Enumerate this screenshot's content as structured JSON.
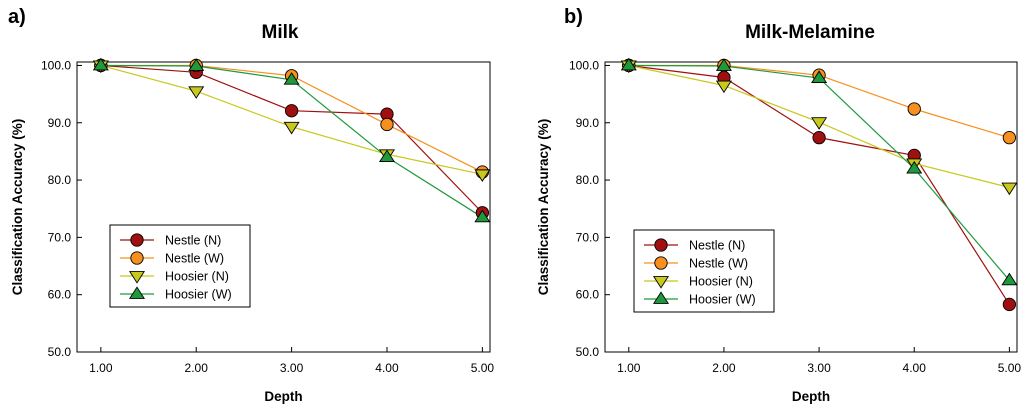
{
  "figure": {
    "panels": [
      "a)",
      "b)"
    ]
  },
  "chart_data": [
    {
      "type": "line",
      "panel_label": "a)",
      "title": "Milk",
      "xlabel": "Depth",
      "ylabel": "Classification Accuracy (%)",
      "x": [
        1,
        2,
        3,
        4,
        5
      ],
      "x_ticks": [
        "1.00",
        "2.00",
        "3.00",
        "4.00",
        "5.00"
      ],
      "y_ticks": [
        "50.0",
        "60.0",
        "70.0",
        "80.0",
        "90.0",
        "100.0"
      ],
      "xlim": [
        0.75,
        5.08
      ],
      "ylim": [
        50,
        100.6
      ],
      "legend_position": "bottom-left",
      "series": [
        {
          "name": "Nestle (N)",
          "values": [
            100,
            98.8,
            92.1,
            91.5,
            74.3
          ],
          "color": "#a01010",
          "marker": "circle"
        },
        {
          "name": "Nestle (W)",
          "values": [
            100,
            100,
            98.2,
            89.7,
            81.4
          ],
          "color": "#f7901e",
          "marker": "circle"
        },
        {
          "name": "Hoosier (N)",
          "values": [
            100,
            95.5,
            89.3,
            84.5,
            81.0
          ],
          "color": "#c8c81e",
          "marker": "triangle-down"
        },
        {
          "name": "Hoosier (W)",
          "values": [
            100,
            99.9,
            97.5,
            84.0,
            73.5
          ],
          "color": "#1e9a3c",
          "marker": "triangle-up"
        }
      ]
    },
    {
      "type": "line",
      "panel_label": "b)",
      "title": "Milk-Melamine",
      "xlabel": "Depth",
      "ylabel": "Classification Accuracy (%)",
      "x": [
        1,
        2,
        3,
        4,
        5
      ],
      "x_ticks": [
        "1.00",
        "2.00",
        "3.00",
        "4.00",
        "5.00"
      ],
      "y_ticks": [
        "50.0",
        "60.0",
        "70.0",
        "80.0",
        "90.0",
        "100.0"
      ],
      "xlim": [
        0.75,
        5.08
      ],
      "ylim": [
        50,
        100.6
      ],
      "legend_position": "bottom-left",
      "series": [
        {
          "name": "Nestle (N)",
          "values": [
            100,
            97.9,
            87.4,
            84.3,
            58.3
          ],
          "color": "#a01010",
          "marker": "circle"
        },
        {
          "name": "Nestle (W)",
          "values": [
            100,
            100,
            98.3,
            92.4,
            87.4
          ],
          "color": "#f7901e",
          "marker": "circle"
        },
        {
          "name": "Hoosier (N)",
          "values": [
            100,
            96.5,
            90.1,
            82.9,
            78.7
          ],
          "color": "#c8c81e",
          "marker": "triangle-down"
        },
        {
          "name": "Hoosier (W)",
          "values": [
            100,
            99.9,
            97.8,
            82.0,
            62.5
          ],
          "color": "#1e9a3c",
          "marker": "triangle-up"
        }
      ]
    }
  ]
}
